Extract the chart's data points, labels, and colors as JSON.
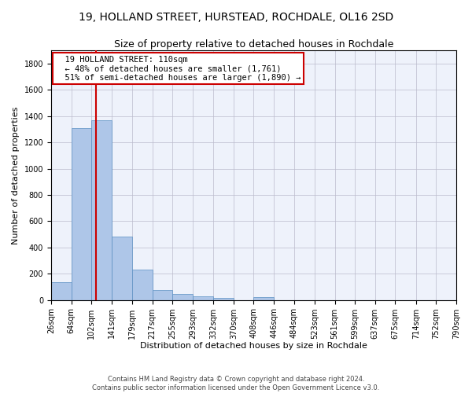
{
  "title1": "19, HOLLAND STREET, HURSTEAD, ROCHDALE, OL16 2SD",
  "title2": "Size of property relative to detached houses in Rochdale",
  "xlabel": "Distribution of detached houses by size in Rochdale",
  "ylabel": "Number of detached properties",
  "footer1": "Contains HM Land Registry data © Crown copyright and database right 2024.",
  "footer2": "Contains public sector information licensed under the Open Government Licence v3.0.",
  "annotation_line1": "19 HOLLAND STREET: 110sqm",
  "annotation_line2": "← 48% of detached houses are smaller (1,761)",
  "annotation_line3": "51% of semi-detached houses are larger (1,890) →",
  "bar_color": "#aec6e8",
  "bar_edge_color": "#5a8fc2",
  "vline_color": "#cc0000",
  "vline_x": 110,
  "bin_edges": [
    26,
    64,
    102,
    141,
    179,
    217,
    255,
    293,
    332,
    370,
    408,
    446,
    484,
    523,
    561,
    599,
    637,
    675,
    714,
    752,
    790
  ],
  "bar_values": [
    135,
    1310,
    1370,
    485,
    230,
    75,
    45,
    30,
    15,
    0,
    20,
    0,
    0,
    0,
    0,
    0,
    0,
    0,
    0,
    0
  ],
  "ylim": [
    0,
    1900
  ],
  "yticks": [
    0,
    200,
    400,
    600,
    800,
    1000,
    1200,
    1400,
    1600,
    1800
  ],
  "background_color": "#eef2fb",
  "grid_color": "#bbbbcc",
  "title_fontsize": 10,
  "subtitle_fontsize": 9,
  "axis_label_fontsize": 8,
  "tick_fontsize": 7,
  "annotation_box_color": "#cc0000",
  "annotation_fontsize": 7.5
}
